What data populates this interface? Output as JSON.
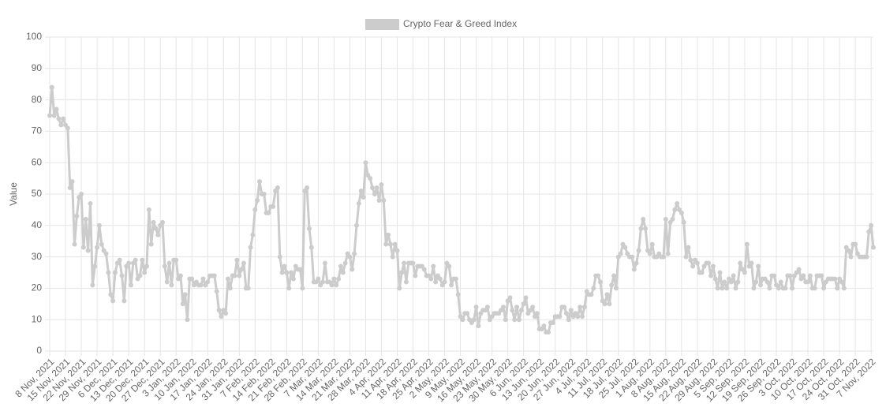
{
  "chart_data": {
    "type": "line",
    "y_axis_label": "Value",
    "ylim": [
      0,
      100
    ],
    "yticks": [
      0,
      10,
      20,
      30,
      40,
      50,
      60,
      70,
      80,
      90,
      100
    ],
    "grid": true,
    "legend": "top",
    "categories": [
      "8 Nov, 2021",
      null,
      null,
      null,
      null,
      null,
      null,
      "15 Nov, 2021",
      null,
      null,
      null,
      null,
      null,
      null,
      "22 Nov, 2021",
      null,
      null,
      null,
      null,
      null,
      null,
      "29 Nov, 2021",
      null,
      null,
      null,
      null,
      null,
      null,
      "6 Dec, 2021",
      null,
      null,
      null,
      null,
      null,
      null,
      "13 Dec, 2021",
      null,
      null,
      null,
      null,
      null,
      null,
      "20 Dec, 2021",
      null,
      null,
      null,
      null,
      null,
      null,
      "27 Dec, 2021",
      null,
      null,
      null,
      null,
      null,
      null,
      "3 Jan, 2022",
      null,
      null,
      null,
      null,
      null,
      null,
      "10 Jan, 2022",
      null,
      null,
      null,
      null,
      null,
      null,
      "17 Jan, 2022",
      null,
      null,
      null,
      null,
      null,
      null,
      "24 Jan, 2022",
      null,
      null,
      null,
      null,
      null,
      null,
      "31 Jan, 2022",
      null,
      null,
      null,
      null,
      null,
      null,
      "7 Feb, 2022",
      null,
      null,
      null,
      null,
      null,
      null,
      "14 Feb, 2022",
      null,
      null,
      null,
      null,
      null,
      null,
      "21 Feb, 2022",
      null,
      null,
      null,
      null,
      null,
      null,
      "28 Feb, 2022",
      null,
      null,
      null,
      null,
      null,
      null,
      "7 Mar, 2022",
      null,
      null,
      null,
      null,
      null,
      null,
      "14 Mar, 2022",
      null,
      null,
      null,
      null,
      null,
      null,
      "21 Mar, 2022",
      null,
      null,
      null,
      null,
      null,
      null,
      "28 Mar, 2022",
      null,
      null,
      null,
      null,
      null,
      null,
      "4 Apr, 2022",
      null,
      null,
      null,
      null,
      null,
      null,
      "11 Apr, 2022",
      null,
      null,
      null,
      null,
      null,
      null,
      "18 Apr, 2022",
      null,
      null,
      null,
      null,
      null,
      null,
      "25 Apr, 2022",
      null,
      null,
      null,
      null,
      null,
      null,
      "2 May, 2022",
      null,
      null,
      null,
      null,
      null,
      null,
      "9 May, 2022",
      null,
      null,
      null,
      null,
      null,
      null,
      "16 May, 2022",
      null,
      null,
      null,
      null,
      null,
      null,
      "23 May, 2022",
      null,
      null,
      null,
      null,
      null,
      null,
      "30 May, 2022",
      null,
      null,
      null,
      null,
      null,
      null,
      "6 Jun, 2022",
      null,
      null,
      null,
      null,
      null,
      null,
      "13 Jun, 2022",
      null,
      null,
      null,
      null,
      null,
      null,
      "20 Jun, 2022",
      null,
      null,
      null,
      null,
      null,
      null,
      "27 Jun, 2022",
      null,
      null,
      null,
      null,
      null,
      null,
      "4 Jul, 2022",
      null,
      null,
      null,
      null,
      null,
      null,
      "11 Jul, 2022",
      null,
      null,
      null,
      null,
      null,
      null,
      "18 Jul, 2022",
      null,
      null,
      null,
      null,
      null,
      null,
      "25 Jul, 2022",
      null,
      null,
      null,
      null,
      null,
      null,
      "1 Aug, 2022",
      null,
      null,
      null,
      null,
      null,
      null,
      "8 Aug, 2022",
      null,
      null,
      null,
      null,
      null,
      null,
      "15 Aug, 2022",
      null,
      null,
      null,
      null,
      null,
      null,
      "22 Aug, 2022",
      null,
      null,
      null,
      null,
      null,
      null,
      "29 Aug, 2022",
      null,
      null,
      null,
      null,
      null,
      null,
      "5 Sep, 2022",
      null,
      null,
      null,
      null,
      null,
      null,
      "12 Sep, 2022",
      null,
      null,
      null,
      null,
      null,
      null,
      "19 Sep, 2022",
      null,
      null,
      null,
      null,
      null,
      null,
      "26 Sep, 2022",
      null,
      null,
      null,
      null,
      null,
      null,
      "3 Oct, 2022",
      null,
      null,
      null,
      null,
      null,
      null,
      "10 Oct, 2022",
      null,
      null,
      null,
      null,
      null,
      null,
      "17 Oct, 2022",
      null,
      null,
      null,
      null,
      null,
      null,
      "24 Oct, 2022",
      null,
      null,
      null,
      null,
      null,
      null,
      "31 Oct, 2022",
      null,
      null,
      null,
      null,
      null,
      null,
      "7 Nov, 2022",
      null
    ],
    "series": [
      {
        "name": "Crypto Fear & Greed Index",
        "color": "#cccccc",
        "values": [
          75,
          84,
          75,
          77,
          74,
          72,
          74,
          72,
          71,
          52,
          54,
          34,
          43,
          49,
          50,
          33,
          42,
          32,
          47,
          21,
          27,
          33,
          40,
          34,
          32,
          31,
          25,
          18,
          16,
          25,
          28,
          29,
          24,
          16,
          27,
          28,
          21,
          28,
          29,
          23,
          24,
          29,
          25,
          27,
          45,
          34,
          41,
          39,
          37,
          40,
          41,
          27,
          22,
          28,
          21,
          29,
          29,
          23,
          24,
          15,
          18,
          10,
          23,
          23,
          21,
          22,
          21,
          21,
          23,
          21,
          22,
          24,
          24,
          24,
          19,
          13,
          11,
          13,
          12,
          23,
          20,
          24,
          24,
          29,
          24,
          26,
          28,
          20,
          20,
          33,
          37,
          45,
          48,
          54,
          50,
          50,
          44,
          44,
          46,
          46,
          51,
          52,
          30,
          25,
          27,
          25,
          20,
          25,
          23,
          27,
          26,
          26,
          20,
          51,
          52,
          39,
          33,
          22,
          22,
          23,
          21,
          22,
          28,
          22,
          22,
          21,
          23,
          21,
          23,
          27,
          25,
          28,
          31,
          30,
          26,
          31,
          40,
          47,
          51,
          49,
          60,
          56,
          55,
          52,
          50,
          52,
          48,
          53,
          48,
          34,
          37,
          34,
          30,
          34,
          32,
          20,
          25,
          28,
          22,
          28,
          28,
          28,
          24,
          27,
          27,
          27,
          26,
          24,
          24,
          23,
          27,
          22,
          24,
          23,
          21,
          22,
          28,
          27,
          21,
          23,
          23,
          18,
          11,
          10,
          12,
          12,
          10,
          9,
          10,
          14,
          8,
          12,
          13,
          13,
          14,
          10,
          11,
          12,
          12,
          12,
          13,
          14,
          10,
          16,
          17,
          13,
          10,
          14,
          10,
          13,
          15,
          17,
          12,
          13,
          14,
          11,
          12,
          7,
          7,
          8,
          6,
          6,
          9,
          9,
          11,
          11,
          11,
          14,
          14,
          12,
          10,
          13,
          11,
          12,
          11,
          14,
          11,
          14,
          19,
          18,
          18,
          20,
          24,
          24,
          22,
          16,
          15,
          18,
          15,
          21,
          24,
          20,
          30,
          31,
          34,
          33,
          31,
          30,
          30,
          26,
          28,
          32,
          39,
          42,
          39,
          32,
          31,
          34,
          30,
          30,
          31,
          30,
          30,
          42,
          31,
          41,
          42,
          45,
          47,
          45,
          44,
          41,
          30,
          33,
          29,
          27,
          29,
          28,
          25,
          25,
          27,
          28,
          28,
          24,
          27,
          23,
          20,
          25,
          20,
          22,
          20,
          23,
          22,
          24,
          20,
          22,
          28,
          26,
          25,
          34,
          27,
          28,
          20,
          22,
          27,
          21,
          23,
          23,
          22,
          20,
          24,
          24,
          21,
          20,
          22,
          20,
          20,
          24,
          24,
          20,
          24,
          25,
          26,
          23,
          24,
          22,
          22,
          24,
          20,
          20,
          24,
          24,
          24,
          20,
          22,
          23,
          23,
          23,
          23,
          20,
          23,
          22,
          20,
          33,
          32,
          30,
          34,
          34,
          31,
          30,
          30,
          30,
          30,
          38,
          40,
          33
        ]
      }
    ]
  }
}
